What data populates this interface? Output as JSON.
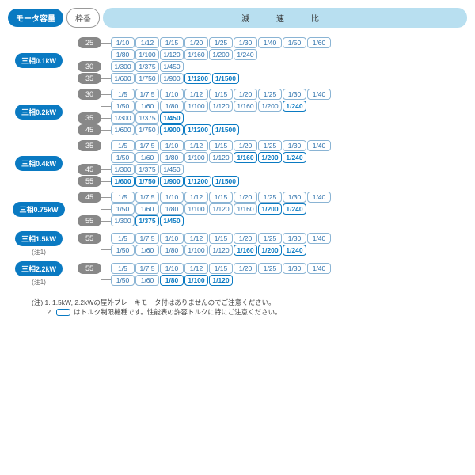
{
  "header": {
    "motor": "モータ容量",
    "frame": "枠番",
    "ratio": "減　速　比"
  },
  "colors": {
    "brand": "#0a7ac2",
    "frame_pill": "#888",
    "ratio_bg": "#b8dff0",
    "chip_border": "#8ab4d4"
  },
  "groups": [
    {
      "motor": "三相0.1kW",
      "note": "",
      "frames": [
        {
          "num": "25",
          "rows": [
            [
              {
                "v": "1/10"
              },
              {
                "v": "1/12"
              },
              {
                "v": "1/15"
              },
              {
                "v": "1/20"
              },
              {
                "v": "1/25"
              },
              {
                "v": "1/30"
              },
              {
                "v": "1/40"
              },
              {
                "v": "1/50"
              },
              {
                "v": "1/60"
              }
            ],
            [
              {
                "v": "1/80"
              },
              {
                "v": "1/100"
              },
              {
                "v": "1/120"
              },
              {
                "v": "1/160"
              },
              {
                "v": "1/200"
              },
              {
                "v": "1/240"
              }
            ]
          ]
        },
        {
          "num": "30",
          "rows": [
            [
              {
                "v": "1/300"
              },
              {
                "v": "1/375"
              },
              {
                "v": "1/450"
              }
            ]
          ]
        },
        {
          "num": "35",
          "rows": [
            [
              {
                "v": "1/600"
              },
              {
                "v": "1/750"
              },
              {
                "v": "1/900"
              },
              {
                "v": "1/1200",
                "hl": 1
              },
              {
                "v": "1/1500",
                "hl": 1
              }
            ]
          ]
        }
      ]
    },
    {
      "motor": "三相0.2kW",
      "note": "",
      "frames": [
        {
          "num": "30",
          "rows": [
            [
              {
                "v": "1/5"
              },
              {
                "v": "1/7.5"
              },
              {
                "v": "1/10"
              },
              {
                "v": "1/12"
              },
              {
                "v": "1/15"
              },
              {
                "v": "1/20"
              },
              {
                "v": "1/25"
              },
              {
                "v": "1/30"
              },
              {
                "v": "1/40"
              }
            ],
            [
              {
                "v": "1/50"
              },
              {
                "v": "1/60"
              },
              {
                "v": "1/80"
              },
              {
                "v": "1/100"
              },
              {
                "v": "1/120"
              },
              {
                "v": "1/160"
              },
              {
                "v": "1/200"
              },
              {
                "v": "1/240",
                "hl": 1
              }
            ]
          ]
        },
        {
          "num": "35",
          "rows": [
            [
              {
                "v": "1/300"
              },
              {
                "v": "1/375"
              },
              {
                "v": "1/450",
                "hl": 1
              }
            ]
          ]
        },
        {
          "num": "45",
          "rows": [
            [
              {
                "v": "1/600"
              },
              {
                "v": "1/750"
              },
              {
                "v": "1/900",
                "hl": 1
              },
              {
                "v": "1/1200",
                "hl": 1
              },
              {
                "v": "1/1500",
                "hl": 1
              }
            ]
          ]
        }
      ]
    },
    {
      "motor": "三相0.4kW",
      "note": "",
      "frames": [
        {
          "num": "35",
          "rows": [
            [
              {
                "v": "1/5"
              },
              {
                "v": "1/7.5"
              },
              {
                "v": "1/10"
              },
              {
                "v": "1/12"
              },
              {
                "v": "1/15"
              },
              {
                "v": "1/20"
              },
              {
                "v": "1/25"
              },
              {
                "v": "1/30"
              },
              {
                "v": "1/40"
              }
            ],
            [
              {
                "v": "1/50"
              },
              {
                "v": "1/60"
              },
              {
                "v": "1/80"
              },
              {
                "v": "1/100"
              },
              {
                "v": "1/120"
              },
              {
                "v": "1/160",
                "hl": 1
              },
              {
                "v": "1/200",
                "hl": 1
              },
              {
                "v": "1/240",
                "hl": 1
              }
            ]
          ]
        },
        {
          "num": "45",
          "rows": [
            [
              {
                "v": "1/300"
              },
              {
                "v": "1/375"
              },
              {
                "v": "1/450"
              }
            ]
          ]
        },
        {
          "num": "55",
          "rows": [
            [
              {
                "v": "1/600",
                "hl": 1
              },
              {
                "v": "1/750",
                "hl": 1
              },
              {
                "v": "1/900",
                "hl": 1
              },
              {
                "v": "1/1200",
                "hl": 1
              },
              {
                "v": "1/1500",
                "hl": 1
              }
            ]
          ]
        }
      ]
    },
    {
      "motor": "三相0.75kW",
      "note": "",
      "frames": [
        {
          "num": "45",
          "rows": [
            [
              {
                "v": "1/5"
              },
              {
                "v": "1/7.5"
              },
              {
                "v": "1/10"
              },
              {
                "v": "1/12"
              },
              {
                "v": "1/15"
              },
              {
                "v": "1/20"
              },
              {
                "v": "1/25"
              },
              {
                "v": "1/30"
              },
              {
                "v": "1/40"
              }
            ],
            [
              {
                "v": "1/50"
              },
              {
                "v": "1/60"
              },
              {
                "v": "1/80"
              },
              {
                "v": "1/100"
              },
              {
                "v": "1/120"
              },
              {
                "v": "1/160"
              },
              {
                "v": "1/200",
                "hl": 1
              },
              {
                "v": "1/240",
                "hl": 1
              }
            ]
          ]
        },
        {
          "num": "55",
          "rows": [
            [
              {
                "v": "1/300"
              },
              {
                "v": "1/375",
                "hl": 1
              },
              {
                "v": "1/450",
                "hl": 1
              }
            ]
          ]
        }
      ]
    },
    {
      "motor": "三相1.5kW",
      "note": "(注1)",
      "frames": [
        {
          "num": "55",
          "rows": [
            [
              {
                "v": "1/5"
              },
              {
                "v": "1/7.5"
              },
              {
                "v": "1/10"
              },
              {
                "v": "1/12"
              },
              {
                "v": "1/15"
              },
              {
                "v": "1/20"
              },
              {
                "v": "1/25"
              },
              {
                "v": "1/30"
              },
              {
                "v": "1/40"
              }
            ],
            [
              {
                "v": "1/50"
              },
              {
                "v": "1/60"
              },
              {
                "v": "1/80"
              },
              {
                "v": "1/100"
              },
              {
                "v": "1/120"
              },
              {
                "v": "1/160",
                "hl": 1
              },
              {
                "v": "1/200",
                "hl": 1
              },
              {
                "v": "1/240",
                "hl": 1
              }
            ]
          ]
        }
      ]
    },
    {
      "motor": "三相2.2kW",
      "note": "(注1)",
      "frames": [
        {
          "num": "55",
          "rows": [
            [
              {
                "v": "1/5"
              },
              {
                "v": "1/7.5"
              },
              {
                "v": "1/10"
              },
              {
                "v": "1/12"
              },
              {
                "v": "1/15"
              },
              {
                "v": "1/20"
              },
              {
                "v": "1/25"
              },
              {
                "v": "1/30"
              },
              {
                "v": "1/40"
              }
            ],
            [
              {
                "v": "1/50"
              },
              {
                "v": "1/60"
              },
              {
                "v": "1/80",
                "hl": 1
              },
              {
                "v": "1/100",
                "hl": 1
              },
              {
                "v": "1/120",
                "hl": 1
              }
            ]
          ]
        }
      ]
    }
  ],
  "notes": {
    "line1": "(注) 1. 1.5kW, 2.2kWの屋外ブレーキモータ付はありませんのでご注意ください。",
    "line2_pre": "　　 2. ",
    "line2_post": " はトルク制限機種です。性能表の許容トルクに特にご注意ください。"
  }
}
